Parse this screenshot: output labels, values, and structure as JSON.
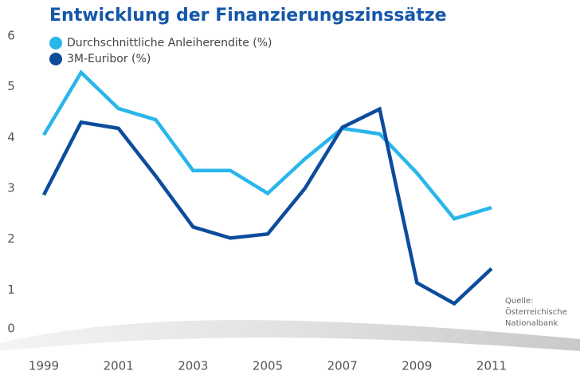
{
  "chart_data": {
    "type": "line",
    "title": "Entwicklung der Finanzierungszinssätze",
    "x": [
      1999,
      2000,
      2001,
      2002,
      2003,
      2004,
      2005,
      2006,
      2007,
      2008,
      2009,
      2010,
      2011
    ],
    "xlim": [
      1999,
      2011
    ],
    "xticks": [
      1999,
      2001,
      2003,
      2005,
      2007,
      2009,
      2011
    ],
    "ylim": [
      0,
      6
    ],
    "yticks": [
      0,
      1,
      2,
      3,
      4,
      5,
      6
    ],
    "series": [
      {
        "name": "Durchschnittliche Anleiherendite (%)",
        "color": "#29b6ea",
        "values": [
          4.05,
          5.28,
          4.57,
          4.35,
          3.35,
          3.35,
          2.9,
          3.58,
          4.18,
          4.07,
          3.3,
          2.4,
          2.62
        ]
      },
      {
        "name": "3M-Euribor (%)",
        "color": "#0d4c9c",
        "values": [
          2.87,
          4.3,
          4.18,
          3.24,
          2.24,
          2.02,
          2.1,
          3.0,
          4.2,
          4.56,
          1.14,
          0.73,
          1.42
        ]
      }
    ],
    "source": [
      "Quelle:",
      "Österreichische",
      "Nationalbank"
    ]
  }
}
